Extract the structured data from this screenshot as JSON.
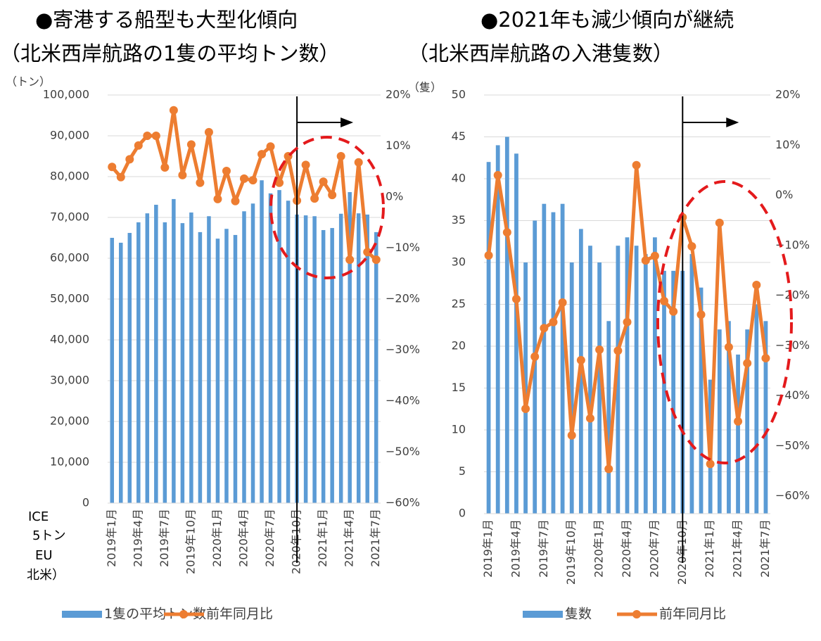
{
  "chart_data": [
    {
      "type": "bar_line",
      "title": "●寄港する船型も大型化傾向",
      "subtitle": "（北米西岸航路の1隻の平均トン数）",
      "y_label": "（トン）",
      "categories": [
        "2019年1月",
        null,
        null,
        "2019年4月",
        null,
        null,
        "2019年7月",
        null,
        null,
        "2019年10月",
        null,
        null,
        "2020年1月",
        null,
        null,
        "2020年4月",
        null,
        null,
        "2020年7月",
        null,
        null,
        "2020年10月",
        null,
        null,
        "2021年1月",
        null,
        null,
        "2021年4月",
        null,
        null,
        "2021年7月"
      ],
      "series": [
        {
          "name": "1隻の平均トン数",
          "color": "#5b9bd5",
          "type": "bar",
          "values": [
            65000,
            63800,
            66200,
            68800,
            71000,
            73100,
            68800,
            74500,
            68600,
            71200,
            66400,
            70300,
            64800,
            67200,
            65700,
            71500,
            73400,
            79100,
            75900,
            76700,
            74100,
            70700,
            70500,
            70300,
            66900,
            67400,
            70900,
            76200,
            71000,
            70700,
            66400
          ]
        },
        {
          "name": "前年同月比",
          "color": "#ed7d31",
          "type": "line",
          "axis": "y2",
          "values": [
            5.9,
            3.9,
            7.4,
            10.1,
            12.0,
            12.0,
            5.8,
            17.0,
            4.3,
            10.3,
            2.8,
            12.7,
            -0.4,
            5.1,
            -0.8,
            3.6,
            3.3,
            8.4,
            9.9,
            2.8,
            8.0,
            -0.7,
            6.3,
            -0.3,
            3.0,
            0.4,
            8.0,
            -12.3,
            6.8,
            -10.8,
            -12.3
          ]
        }
      ],
      "ylim": [
        0,
        100000
      ],
      "yticks": [
        0,
        {
          "value": 10000,
          "label": "10,000"
        },
        {
          "value": 20000,
          "label": "20,000"
        },
        {
          "value": 30000,
          "label": "30,000"
        },
        {
          "value": 40000,
          "label": "40,000"
        },
        {
          "value": 50000,
          "label": "50,000"
        },
        {
          "value": 60000,
          "label": "60,000"
        },
        {
          "value": 70000,
          "label": "70,000"
        },
        {
          "value": 80000,
          "label": "80,000"
        },
        {
          "value": 90000,
          "label": "90,000"
        },
        {
          "value": 100000,
          "label": "100,000"
        }
      ],
      "y2lim": [
        -60,
        20
      ],
      "y2ticks": [
        {
          "value": -60,
          "label": "−60%"
        },
        {
          "value": -50,
          "label": "−50%"
        },
        {
          "value": -40,
          "label": "−40%"
        },
        {
          "value": -30,
          "label": "−30%"
        },
        {
          "value": -20,
          "label": "−20%"
        },
        {
          "value": -10,
          "label": "−10%"
        },
        {
          "value": 0,
          "label": "0%"
        },
        {
          "value": 10,
          "label": "10%"
        },
        {
          "value": 20,
          "label": "20%"
        }
      ],
      "grid": true
    },
    {
      "type": "bar_line",
      "title": "●2021年も減少傾向が継続",
      "subtitle": "（北米西岸航路の入港隻数）",
      "y_label": "（隻）",
      "categories": [
        "2019年1月",
        null,
        null,
        "2019年4月",
        null,
        null,
        "2019年7月",
        null,
        null,
        "2019年10月",
        null,
        null,
        "2020年1月",
        null,
        null,
        "2020年4月",
        null,
        null,
        "2020年7月",
        null,
        null,
        "2020年10月",
        null,
        null,
        "2021年1月",
        null,
        null,
        "2021年4月",
        null,
        null,
        "2021年7月"
      ],
      "series": [
        {
          "name": "隻数",
          "color": "#5b9bd5",
          "type": "bar",
          "values": [
            42,
            44,
            45,
            43,
            30,
            35,
            37,
            36,
            37,
            30,
            34,
            32,
            30,
            23,
            32,
            33,
            32,
            31,
            33,
            29,
            29,
            29,
            31,
            27,
            16,
            22,
            23,
            19,
            22,
            25,
            23
          ]
        },
        {
          "name": "前年同月比",
          "color": "#ed7d31",
          "type": "line",
          "axis": "y2",
          "values": [
            -12.0,
            4.0,
            -7.4,
            -20.7,
            -42.6,
            -32.2,
            -26.5,
            -25.3,
            -21.4,
            -47.9,
            -32.9,
            -44.5,
            -30.8,
            -54.6,
            -31.0,
            -25.3,
            6.0,
            -13.0,
            -12.1,
            -21.1,
            -23.2,
            -4.4,
            -10.2,
            -23.8,
            -53.6,
            -5.5,
            -30.3,
            -45.1,
            -33.5,
            -17.9,
            -32.5
          ]
        }
      ],
      "ylim": [
        0,
        50
      ],
      "yticks": [
        0,
        5,
        10,
        15,
        20,
        25,
        30,
        35,
        40,
        45,
        50
      ],
      "y2lim": [
        -60,
        20
      ],
      "y2ticks": [
        {
          "value": -60,
          "label": "−60%"
        },
        {
          "value": -50,
          "label": "−50%"
        },
        {
          "value": -40,
          "label": "−40%"
        },
        {
          "value": -30,
          "label": "−30%"
        },
        {
          "value": -20,
          "label": "−20%"
        },
        {
          "value": -10,
          "label": "−10%"
        },
        {
          "value": 0,
          "label": "0%"
        },
        {
          "value": 10,
          "label": "10%"
        },
        {
          "value": 20,
          "label": "20%"
        }
      ],
      "grid": true
    }
  ],
  "notes": [
    "ICE",
    "5トン",
    "EU",
    "北米）"
  ]
}
